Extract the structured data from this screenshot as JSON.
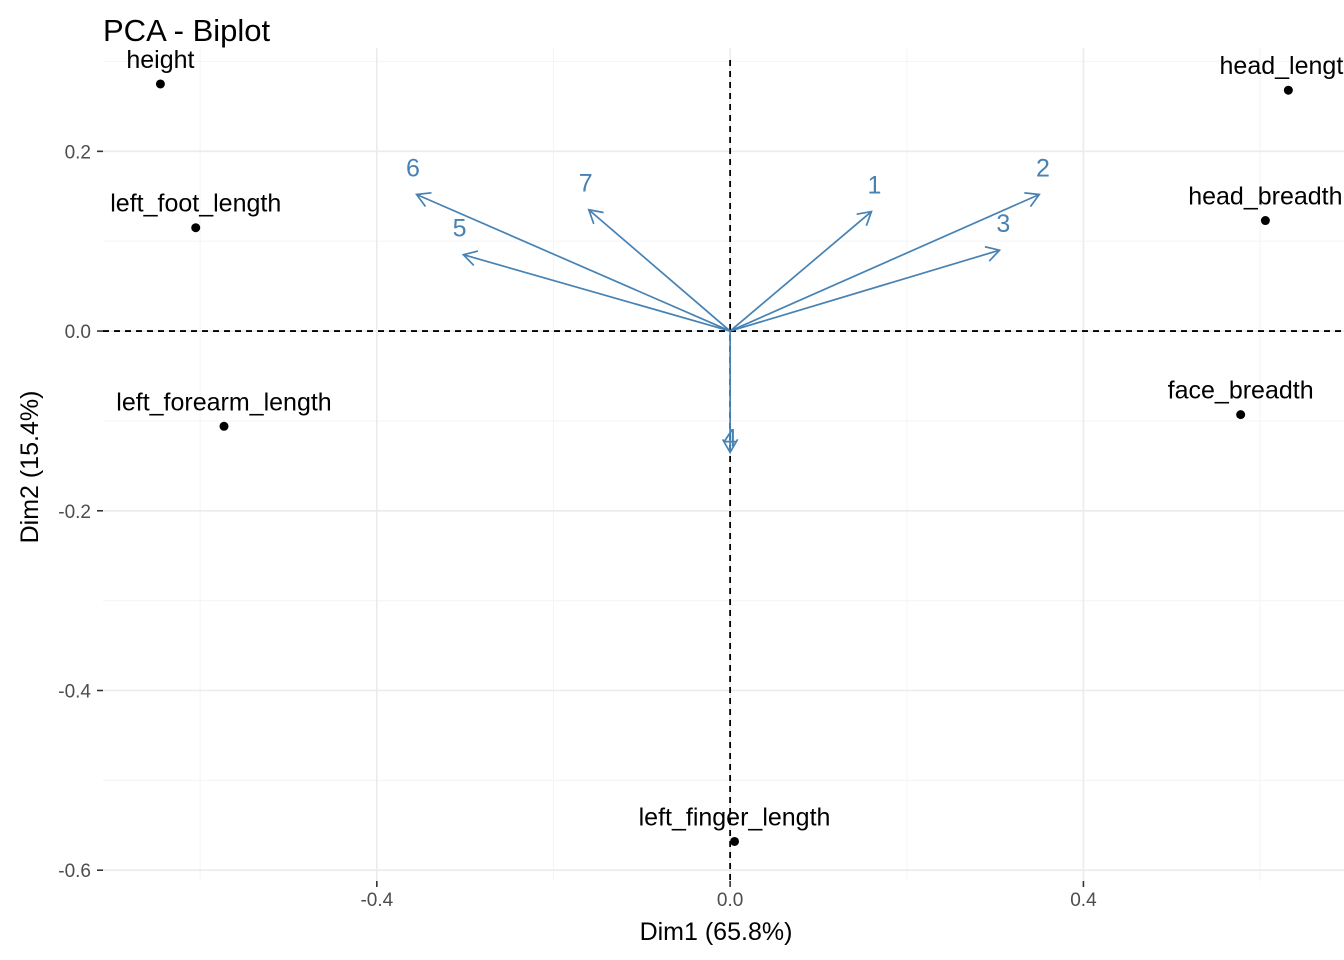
{
  "chart_data": {
    "type": "scatter",
    "title": "PCA - Biplot",
    "xlabel": "Dim1 (65.8%)",
    "ylabel": "Dim2 (15.4%)",
    "xlim": [
      -0.71,
      0.695
    ],
    "ylim": [
      -0.612,
      0.315
    ],
    "x_ticks": [
      -0.4,
      0.0,
      0.4
    ],
    "x_tick_labels": [
      "-0.4",
      "0.0",
      "0.4"
    ],
    "y_ticks": [
      0.2,
      0.0,
      -0.2,
      -0.4,
      -0.6
    ],
    "y_tick_labels": [
      "0.2",
      "0.0",
      "-0.2",
      "-0.4",
      "-0.6"
    ],
    "grid": true,
    "reference_lines": {
      "x": 0,
      "y": 0,
      "style": "dashed"
    },
    "points": [
      {
        "label": "height",
        "x": -0.645,
        "y": 0.275
      },
      {
        "label": "left_foot_length",
        "x": -0.605,
        "y": 0.115
      },
      {
        "label": "left_forearm_length",
        "x": -0.573,
        "y": -0.106
      },
      {
        "label": "head_length",
        "x": 0.632,
        "y": 0.268
      },
      {
        "label": "head_breadth",
        "x": 0.606,
        "y": 0.123
      },
      {
        "label": "face_breadth",
        "x": 0.578,
        "y": -0.093
      },
      {
        "label": "left_finger_length",
        "x": 0.005,
        "y": -0.568
      }
    ],
    "vectors": [
      {
        "label": "1",
        "x": 0.16,
        "y": 0.133
      },
      {
        "label": "2",
        "x": 0.35,
        "y": 0.152
      },
      {
        "label": "3",
        "x": 0.305,
        "y": 0.09
      },
      {
        "label": "4",
        "x": 0.0,
        "y": -0.135
      },
      {
        "label": "5",
        "x": -0.302,
        "y": 0.085
      },
      {
        "label": "6",
        "x": -0.355,
        "y": 0.152
      },
      {
        "label": "7",
        "x": -0.16,
        "y": 0.135
      }
    ],
    "colors": {
      "points": "#000000",
      "vectors": "#4682b4",
      "grid": "#ebebeb",
      "reference": "#000000"
    }
  }
}
